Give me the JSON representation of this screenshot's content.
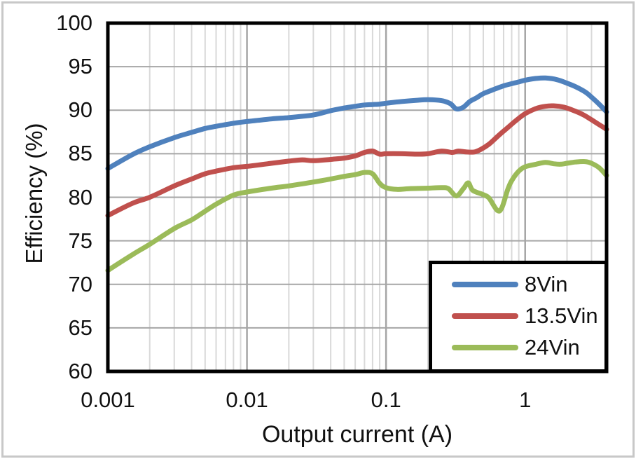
{
  "figure": {
    "background": "#ffffff",
    "frame_border_color": "#c8c8c8",
    "plot_border_color": "#000000",
    "grid_minor_color": "#d9d9d9",
    "grid_major_color": "#a6a6a6",
    "text_color": "#111111"
  },
  "legend": {
    "position": "bottom-right",
    "entries": [
      {
        "label": "8Vin",
        "color": "#4F81BD"
      },
      {
        "label": "13.5Vin",
        "color": "#C0504D"
      },
      {
        "label": "24Vin",
        "color": "#9BBB59"
      }
    ]
  },
  "chart_data": {
    "type": "line",
    "title": "",
    "xlabel": "Output current (A)",
    "ylabel": "Efficiency (%)",
    "x_scale": "log",
    "xlim": [
      0.001,
      3.85
    ],
    "ylim": [
      60,
      100
    ],
    "y_tick_step": 5,
    "grid": true,
    "legend_position": "bottom-right",
    "x_ticks": [
      {
        "value": 0.001,
        "label": "0.001"
      },
      {
        "value": 0.01,
        "label": "0.01"
      },
      {
        "value": 0.1,
        "label": "0.1"
      },
      {
        "value": 1,
        "label": "1"
      }
    ],
    "y_ticks": [
      {
        "value": 100,
        "label": "100"
      },
      {
        "value": 95,
        "label": "95"
      },
      {
        "value": 90,
        "label": "90"
      },
      {
        "value": 85,
        "label": "85"
      },
      {
        "value": 80,
        "label": "80"
      },
      {
        "value": 75,
        "label": "75"
      },
      {
        "value": 70,
        "label": "70"
      },
      {
        "value": 65,
        "label": "65"
      },
      {
        "value": 60,
        "label": "60"
      }
    ],
    "series": [
      {
        "name": "8Vin",
        "color": "#4F81BD",
        "points": [
          [
            0.001,
            83.3
          ],
          [
            0.0015,
            84.9
          ],
          [
            0.002,
            85.8
          ],
          [
            0.003,
            86.85
          ],
          [
            0.004,
            87.45
          ],
          [
            0.005,
            87.9
          ],
          [
            0.006,
            88.15
          ],
          [
            0.008,
            88.5
          ],
          [
            0.01,
            88.7
          ],
          [
            0.015,
            89.0
          ],
          [
            0.02,
            89.15
          ],
          [
            0.03,
            89.45
          ],
          [
            0.04,
            89.95
          ],
          [
            0.05,
            90.25
          ],
          [
            0.06,
            90.45
          ],
          [
            0.07,
            90.6
          ],
          [
            0.08,
            90.65
          ],
          [
            0.09,
            90.7
          ],
          [
            0.1,
            90.8
          ],
          [
            0.13,
            91.0
          ],
          [
            0.17,
            91.15
          ],
          [
            0.2,
            91.2
          ],
          [
            0.25,
            91.1
          ],
          [
            0.29,
            90.75
          ],
          [
            0.32,
            90.15
          ],
          [
            0.36,
            90.35
          ],
          [
            0.4,
            91.0
          ],
          [
            0.45,
            91.45
          ],
          [
            0.5,
            91.9
          ],
          [
            0.6,
            92.4
          ],
          [
            0.7,
            92.8
          ],
          [
            0.8,
            93.05
          ],
          [
            0.9,
            93.25
          ],
          [
            1.0,
            93.45
          ],
          [
            1.2,
            93.65
          ],
          [
            1.4,
            93.7
          ],
          [
            1.7,
            93.5
          ],
          [
            2.0,
            93.1
          ],
          [
            2.3,
            92.7
          ],
          [
            2.7,
            92.1
          ],
          [
            3.0,
            91.5
          ],
          [
            3.4,
            90.7
          ],
          [
            3.85,
            89.8
          ]
        ]
      },
      {
        "name": "13.5Vin",
        "color": "#C0504D",
        "points": [
          [
            0.001,
            77.9
          ],
          [
            0.0015,
            79.3
          ],
          [
            0.002,
            80.0
          ],
          [
            0.003,
            81.3
          ],
          [
            0.004,
            82.1
          ],
          [
            0.005,
            82.7
          ],
          [
            0.006,
            83.0
          ],
          [
            0.008,
            83.4
          ],
          [
            0.01,
            83.55
          ],
          [
            0.015,
            83.9
          ],
          [
            0.02,
            84.15
          ],
          [
            0.025,
            84.3
          ],
          [
            0.03,
            84.2
          ],
          [
            0.04,
            84.35
          ],
          [
            0.05,
            84.5
          ],
          [
            0.06,
            84.75
          ],
          [
            0.07,
            85.15
          ],
          [
            0.08,
            85.3
          ],
          [
            0.09,
            84.95
          ],
          [
            0.1,
            85.0
          ],
          [
            0.13,
            85.0
          ],
          [
            0.17,
            84.95
          ],
          [
            0.2,
            85.0
          ],
          [
            0.25,
            85.3
          ],
          [
            0.3,
            85.15
          ],
          [
            0.33,
            85.3
          ],
          [
            0.38,
            85.2
          ],
          [
            0.43,
            85.2
          ],
          [
            0.48,
            85.5
          ],
          [
            0.55,
            86.1
          ],
          [
            0.65,
            87.15
          ],
          [
            0.75,
            88.0
          ],
          [
            0.85,
            88.75
          ],
          [
            1.0,
            89.6
          ],
          [
            1.2,
            90.2
          ],
          [
            1.4,
            90.45
          ],
          [
            1.6,
            90.5
          ],
          [
            1.9,
            90.35
          ],
          [
            2.2,
            90.0
          ],
          [
            2.6,
            89.5
          ],
          [
            3.0,
            88.9
          ],
          [
            3.4,
            88.35
          ],
          [
            3.85,
            87.8
          ]
        ]
      },
      {
        "name": "24Vin",
        "color": "#9BBB59",
        "points": [
          [
            0.001,
            71.6
          ],
          [
            0.0015,
            73.4
          ],
          [
            0.002,
            74.6
          ],
          [
            0.003,
            76.4
          ],
          [
            0.004,
            77.4
          ],
          [
            0.005,
            78.4
          ],
          [
            0.006,
            79.2
          ],
          [
            0.008,
            80.25
          ],
          [
            0.01,
            80.6
          ],
          [
            0.015,
            81.05
          ],
          [
            0.02,
            81.3
          ],
          [
            0.03,
            81.75
          ],
          [
            0.04,
            82.1
          ],
          [
            0.05,
            82.4
          ],
          [
            0.06,
            82.6
          ],
          [
            0.07,
            82.85
          ],
          [
            0.08,
            82.7
          ],
          [
            0.09,
            81.6
          ],
          [
            0.1,
            81.1
          ],
          [
            0.12,
            80.9
          ],
          [
            0.15,
            81.0
          ],
          [
            0.2,
            81.05
          ],
          [
            0.25,
            81.1
          ],
          [
            0.28,
            81.0
          ],
          [
            0.32,
            80.15
          ],
          [
            0.36,
            81.0
          ],
          [
            0.39,
            81.65
          ],
          [
            0.42,
            80.8
          ],
          [
            0.5,
            80.3
          ],
          [
            0.55,
            79.9
          ],
          [
            0.63,
            78.5
          ],
          [
            0.68,
            78.8
          ],
          [
            0.75,
            80.9
          ],
          [
            0.8,
            81.9
          ],
          [
            0.9,
            83.0
          ],
          [
            1.0,
            83.5
          ],
          [
            1.2,
            83.8
          ],
          [
            1.4,
            84.0
          ],
          [
            1.6,
            83.85
          ],
          [
            1.8,
            83.8
          ],
          [
            2.0,
            83.9
          ],
          [
            2.3,
            84.05
          ],
          [
            2.7,
            84.1
          ],
          [
            3.0,
            83.9
          ],
          [
            3.4,
            83.4
          ],
          [
            3.85,
            82.5
          ]
        ]
      }
    ]
  }
}
